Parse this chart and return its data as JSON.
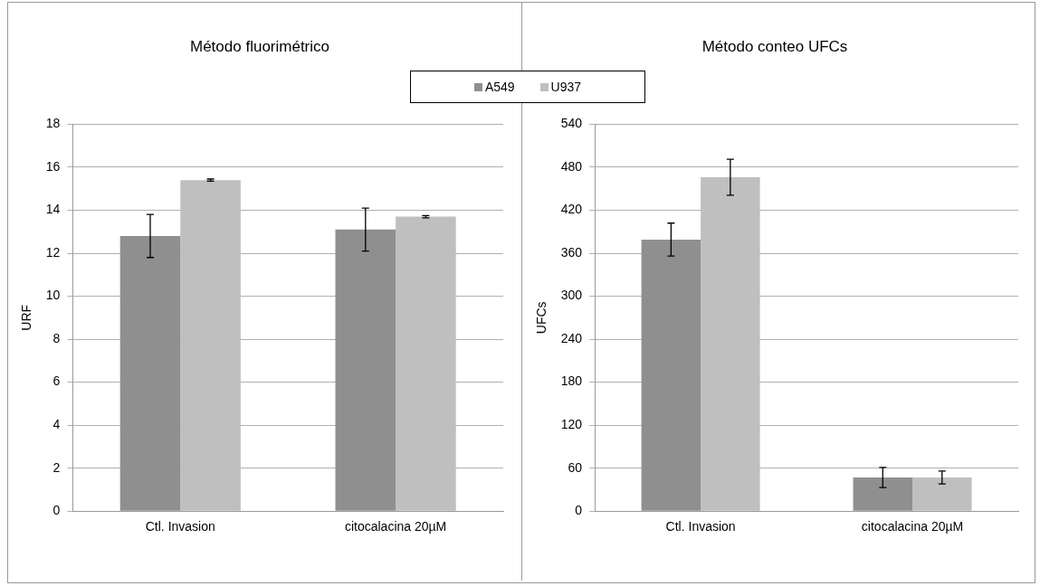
{
  "chart_data": [
    {
      "type": "bar",
      "title": "Método fluorimétrico",
      "ylabel": "URF",
      "categories": [
        "Ctl. Invasion",
        "citocalacina 20µM"
      ],
      "series": [
        {
          "name": "A549",
          "color": "#8f8f8f",
          "values": [
            12.8,
            13.1
          ],
          "errors": [
            1.0,
            1.0
          ]
        },
        {
          "name": "U937",
          "color": "#bfbfbf",
          "values": [
            15.4,
            13.7
          ],
          "errors": [
            0.05,
            0.05
          ]
        }
      ],
      "ylim": [
        0,
        18
      ],
      "yticks": [
        0,
        2,
        4,
        6,
        8,
        10,
        12,
        14,
        16,
        18
      ],
      "grid": "y",
      "legend": "top"
    },
    {
      "type": "bar",
      "title": "Método conteo UFCs",
      "ylabel": "UFCs",
      "categories": [
        "Ctl. Invasion",
        "citocalacina 20µM"
      ],
      "series": [
        {
          "color": "#8f8f8f",
          "values": [
            379,
            47
          ],
          "errors": [
            23,
            14
          ]
        },
        {
          "color": "#bfbfbf",
          "values": [
            466,
            47
          ],
          "errors": [
            25,
            9
          ]
        }
      ],
      "ylim": [
        0,
        540
      ],
      "yticks": [
        0,
        60,
        120,
        180,
        240,
        300,
        360,
        420,
        480,
        540
      ],
      "grid": "y"
    }
  ]
}
